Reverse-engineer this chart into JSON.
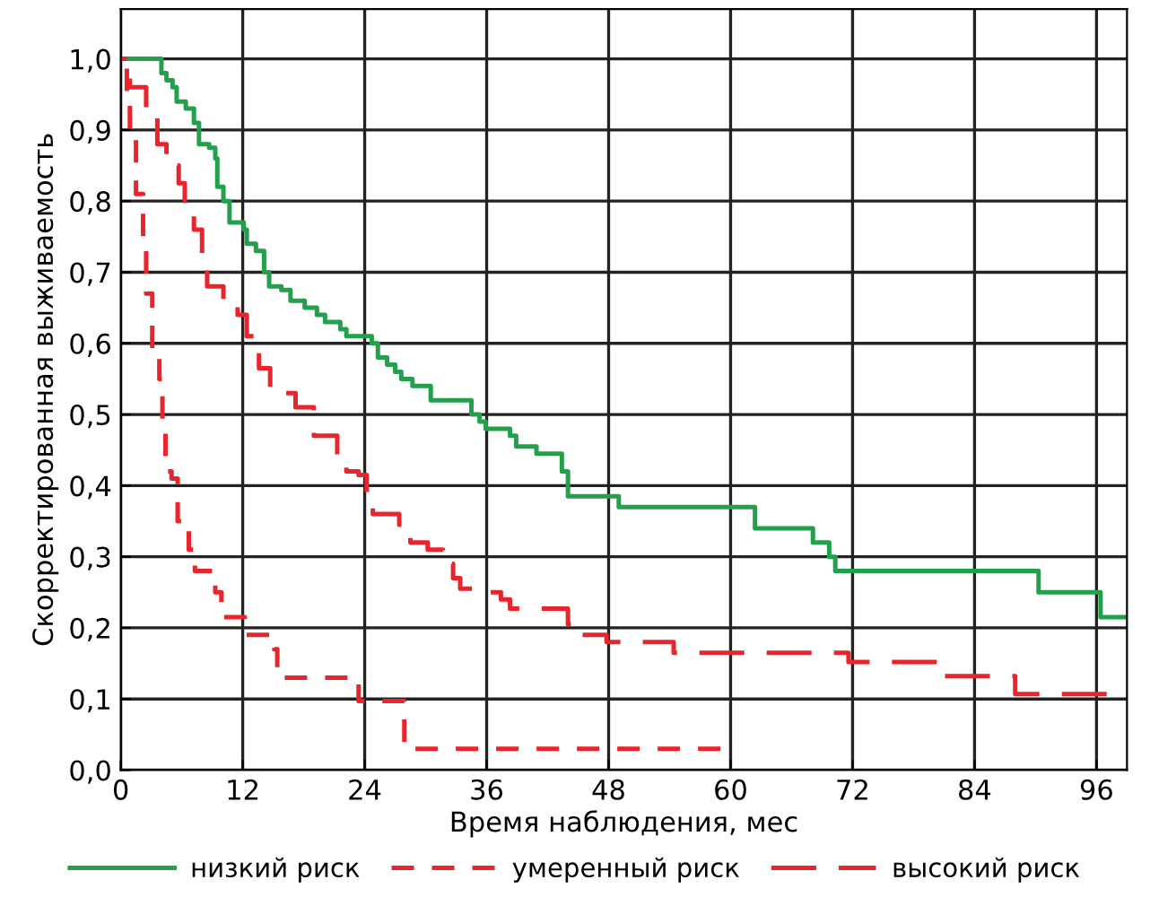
{
  "chart_data": {
    "type": "step",
    "xlabel": "Время наблюдения, мес",
    "ylabel": "Скорректированная выживаемость",
    "xlim": [
      0,
      99
    ],
    "ylim": [
      0,
      1.07
    ],
    "xticks": [
      0,
      12,
      24,
      36,
      48,
      60,
      72,
      84,
      96
    ],
    "yticks": [
      {
        "value": 0,
        "label": "0,0"
      },
      {
        "value": 0.1,
        "label": "0,1"
      },
      {
        "value": 0.2,
        "label": "0,2"
      },
      {
        "value": 0.3,
        "label": "0,3"
      },
      {
        "value": 0.4,
        "label": "0,4"
      },
      {
        "value": 0.5,
        "label": "0,5"
      },
      {
        "value": 0.6,
        "label": "0,6"
      },
      {
        "value": 0.7,
        "label": "0,7"
      },
      {
        "value": 0.8,
        "label": "0,8"
      },
      {
        "value": 0.9,
        "label": "0,9"
      },
      {
        "value": 1.0,
        "label": "1,0"
      }
    ],
    "grid": true,
    "legend": "bottom",
    "marker": "none",
    "series": [
      {
        "name": "низкий риск",
        "color": "#22a04b",
        "line_style": "solid",
        "x": [
          0,
          4.0,
          4.5,
          5.1,
          5.5,
          6.4,
          7.2,
          7.7,
          8.7,
          9.3,
          9.5,
          10.1,
          10.7,
          12.1,
          12.4,
          13.3,
          14.1,
          14.6,
          15.8,
          16.7,
          18.1,
          19.3,
          20.1,
          21.6,
          22.2,
          24.7,
          25.3,
          26.2,
          27.0,
          27.6,
          28.7,
          30.5,
          34.5,
          35.3,
          35.9,
          38.3,
          38.9,
          40.9,
          43.4,
          44.0,
          49.0,
          62.4,
          68.1,
          69.7,
          70.3,
          90.3,
          96.4,
          99
        ],
        "values": [
          1.0,
          0.98,
          0.97,
          0.96,
          0.94,
          0.93,
          0.91,
          0.88,
          0.875,
          0.86,
          0.82,
          0.8,
          0.77,
          0.76,
          0.74,
          0.73,
          0.7,
          0.68,
          0.675,
          0.66,
          0.65,
          0.64,
          0.63,
          0.62,
          0.61,
          0.6,
          0.58,
          0.57,
          0.56,
          0.55,
          0.54,
          0.52,
          0.5,
          0.49,
          0.48,
          0.47,
          0.455,
          0.445,
          0.42,
          0.385,
          0.37,
          0.34,
          0.32,
          0.3,
          0.28,
          0.25,
          0.215,
          0.215
        ]
      },
      {
        "name": "умеренный риск",
        "color": "#e8242c",
        "line_style": "dashed",
        "x": [
          0,
          0.6,
          0.9,
          1.5,
          2.2,
          2.5,
          3.1,
          3.8,
          4.1,
          4.4,
          5.0,
          5.6,
          6.7,
          7.3,
          9.3,
          9.9,
          12.2,
          15.1,
          15.4,
          23.4,
          27.9,
          59
        ],
        "values": [
          1.0,
          0.95,
          0.89,
          0.81,
          0.75,
          0.67,
          0.58,
          0.55,
          0.48,
          0.42,
          0.41,
          0.35,
          0.31,
          0.28,
          0.25,
          0.215,
          0.19,
          0.17,
          0.13,
          0.097,
          0.03,
          0.03
        ]
      },
      {
        "name": "высокий риск",
        "color": "#e8242c",
        "line_style": "longdash",
        "x": [
          0,
          0.9,
          2.5,
          3.6,
          4.5,
          5.7,
          6.3,
          7.2,
          8.0,
          8.5,
          10.1,
          11.5,
          12.4,
          13.6,
          14.7,
          15.8,
          17.2,
          19.0,
          21.3,
          22.2,
          23.4,
          24.2,
          24.8,
          27.4,
          28.5,
          30.2,
          31.7,
          32.7,
          33.4,
          35.7,
          37.4,
          38.3,
          44.0,
          44.3,
          47.8,
          54.4,
          71.6,
          80.9,
          88.0,
          97
        ],
        "values": [
          1.0,
          0.96,
          0.925,
          0.88,
          0.85,
          0.825,
          0.79,
          0.76,
          0.71,
          0.68,
          0.66,
          0.64,
          0.61,
          0.565,
          0.535,
          0.53,
          0.51,
          0.47,
          0.44,
          0.42,
          0.415,
          0.37,
          0.36,
          0.345,
          0.32,
          0.31,
          0.29,
          0.27,
          0.255,
          0.25,
          0.24,
          0.227,
          0.205,
          0.19,
          0.18,
          0.165,
          0.152,
          0.132,
          0.107,
          0.107
        ]
      }
    ]
  }
}
